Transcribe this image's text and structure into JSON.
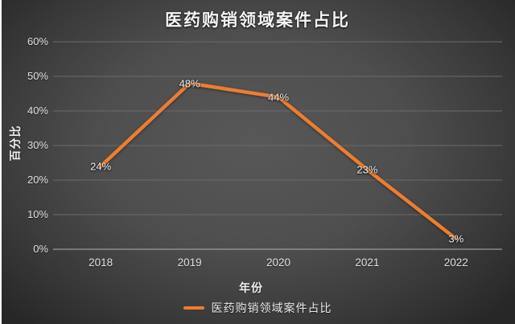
{
  "chart_data": {
    "type": "line",
    "title": "医药购销领域案件占比",
    "categories": [
      "2018",
      "2019",
      "2020",
      "2021",
      "2022"
    ],
    "series": [
      {
        "name": "医药购销领域案件占比",
        "values": [
          24,
          48,
          44,
          23,
          3
        ],
        "color": "#ED7D31"
      }
    ],
    "data_labels": [
      "24%",
      "48%",
      "44%",
      "23%",
      "3%"
    ],
    "xlabel": "年份",
    "ylabel": "百分比",
    "y_ticks": [
      "0%",
      "10%",
      "20%",
      "30%",
      "40%",
      "50%",
      "60%"
    ],
    "ylim": [
      0,
      60
    ],
    "y_tick_step": 10,
    "grid": true,
    "legend_position": "bottom"
  },
  "colors": {
    "line": "#ED7D31",
    "background_center": "#585858",
    "background_edge": "#272727",
    "gridline": "#6b6b6b",
    "axis_line": "#9a9a9a",
    "title_text": "#f5f5f5",
    "tick_text": "#e2e2e2",
    "data_label_text": "#f2f2f2"
  }
}
